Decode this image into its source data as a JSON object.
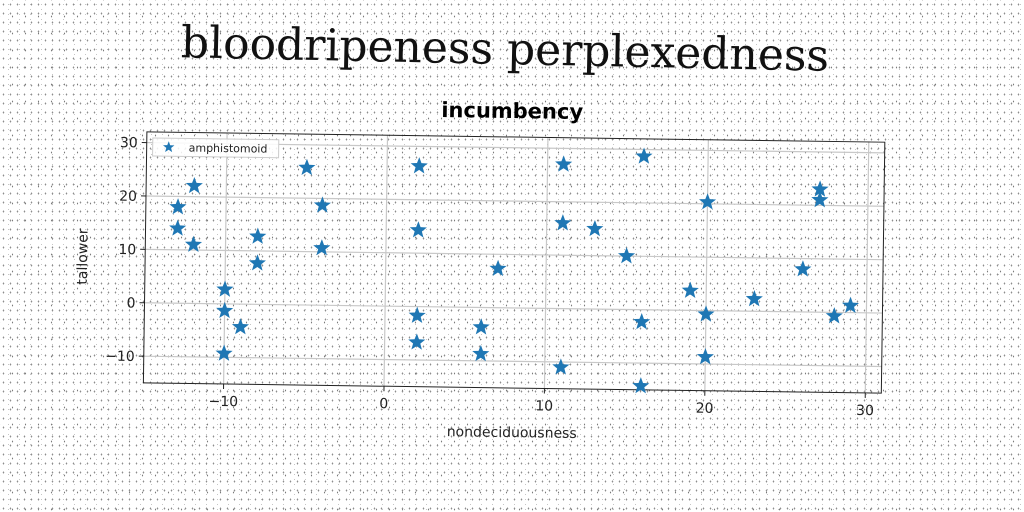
{
  "suptitle": "bloodripeness perplexedness",
  "chart_data": {
    "type": "scatter",
    "title": "incumbency",
    "xlabel": "nondeciduousness",
    "ylabel": "tallower",
    "xlim": [
      -15,
      31
    ],
    "ylim": [
      -15,
      32
    ],
    "xticks": [
      -10,
      0,
      10,
      20,
      30
    ],
    "yticks": [
      -10,
      0,
      10,
      20,
      30
    ],
    "grid": true,
    "legend_position": "top-left",
    "marker": "star",
    "color": "#1f77b4",
    "series": [
      {
        "name": "amphistomoid",
        "points": [
          [
            -13,
            18
          ],
          [
            -13,
            14
          ],
          [
            -12,
            22
          ],
          [
            -12,
            11
          ],
          [
            -10,
            2.7
          ],
          [
            -10,
            -1.3
          ],
          [
            -10,
            -9.3
          ],
          [
            -9,
            -4.3
          ],
          [
            -8,
            12.7
          ],
          [
            -8,
            7.7
          ],
          [
            -5,
            25.7
          ],
          [
            -4,
            18.7
          ],
          [
            -4,
            10.7
          ],
          [
            2,
            26.3
          ],
          [
            2,
            14.3
          ],
          [
            2,
            -1.7
          ],
          [
            2,
            -6.7
          ],
          [
            6,
            -3.7
          ],
          [
            6,
            -8.7
          ],
          [
            7,
            7.3
          ],
          [
            11,
            16
          ],
          [
            11,
            27
          ],
          [
            11,
            -11
          ],
          [
            13,
            15
          ],
          [
            15,
            10
          ],
          [
            16,
            28.7
          ],
          [
            16,
            -2.3
          ],
          [
            16,
            -14.3
          ],
          [
            19,
            3.7
          ],
          [
            20,
            20.3
          ],
          [
            20,
            -0.7
          ],
          [
            20,
            -8.7
          ],
          [
            23,
            2.3
          ],
          [
            26,
            8
          ],
          [
            27,
            23
          ],
          [
            27,
            21
          ],
          [
            28,
            -0.7
          ],
          [
            29,
            1.3
          ]
        ]
      }
    ]
  }
}
